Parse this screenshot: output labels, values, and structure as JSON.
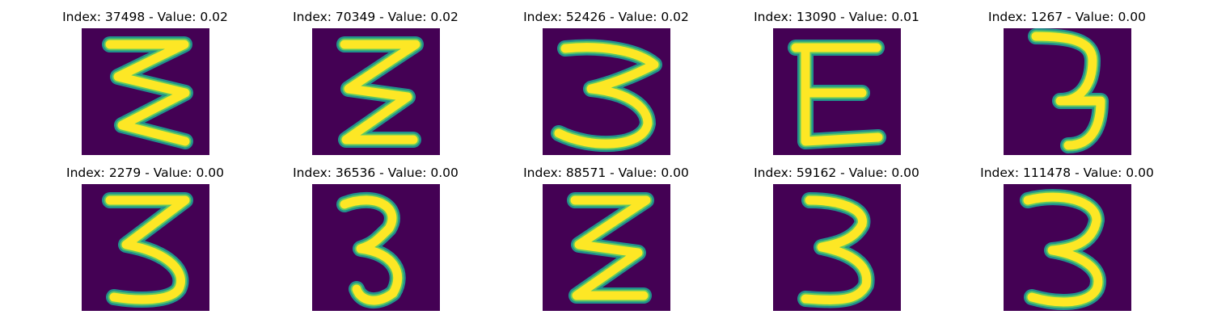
{
  "colors": {
    "background": "#440154",
    "stroke_outer": "#21918c",
    "stroke_mid": "#5ec962",
    "stroke_core": "#fde725",
    "page": "#ffffff"
  },
  "panels": [
    {
      "title": "Index: 37498 - Value: 0.02",
      "shape": "zigzag-3"
    },
    {
      "title": "Index: 70349 - Value: 0.02",
      "shape": "sigma-3"
    },
    {
      "title": "Index: 52426 - Value: 0.02",
      "shape": "wide-3"
    },
    {
      "title": "Index: 13090 - Value: 0.01",
      "shape": "e-shape"
    },
    {
      "title": "Index: 1267 - Value: 0.00",
      "shape": "thin-3"
    },
    {
      "title": "Index: 2279 - Value: 0.00",
      "shape": "bold-3"
    },
    {
      "title": "Index: 36536 - Value: 0.00",
      "shape": "narrow-3"
    },
    {
      "title": "Index: 88571 - Value: 0.00",
      "shape": "sigma-3"
    },
    {
      "title": "Index: 59162 - Value: 0.00",
      "shape": "slant-3"
    },
    {
      "title": "Index: 111478 - Value: 0.00",
      "shape": "round-3"
    }
  ]
}
